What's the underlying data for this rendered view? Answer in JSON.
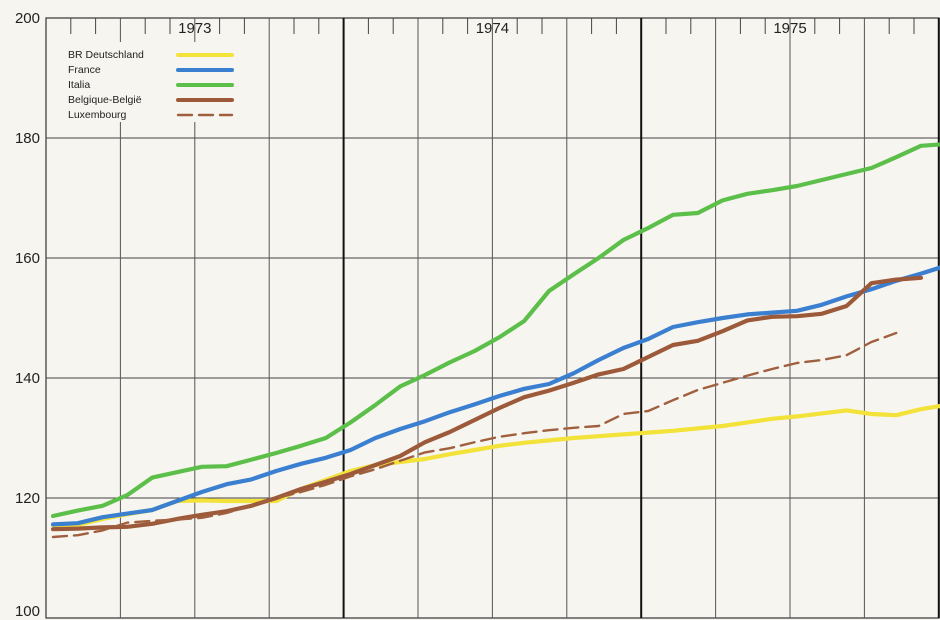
{
  "chart_data": {
    "type": "line",
    "x_unit": "month",
    "x_start": "1973-01",
    "years": [
      "1973",
      "1974",
      "1975"
    ],
    "y_ticks": [
      "200",
      "180",
      "160",
      "140",
      "120",
      "100"
    ],
    "ylim": [
      100,
      200
    ],
    "grid": true,
    "legend_position": "top-left",
    "series": [
      {
        "name": "BR Deutschland",
        "color": "#f2e23a",
        "dashed": false,
        "values": [
          115.5,
          115.5,
          116.5,
          117.3,
          118.0,
          119.5,
          119.6,
          119.5,
          119.5,
          119.5,
          121.5,
          123.0,
          124.5,
          125.5,
          126.0,
          126.5,
          127.3,
          128.0,
          128.7,
          129.2,
          129.6,
          130.0,
          130.3,
          130.6,
          130.9,
          131.2,
          131.6,
          132.0,
          132.6,
          133.2,
          133.6,
          134.1,
          134.6,
          134.0,
          133.8,
          134.8,
          135.5,
          136.5
        ]
      },
      {
        "name": "France",
        "color": "#3b7fd0",
        "dashed": false,
        "values": [
          115.6,
          115.8,
          116.8,
          117.4,
          118.0,
          119.5,
          121.0,
          122.3,
          123.1,
          124.5,
          125.7,
          126.7,
          128.0,
          130.0,
          131.5,
          132.8,
          134.3,
          135.6,
          137.0,
          138.2,
          139.0,
          140.8,
          143.0,
          145.0,
          146.5,
          148.5,
          149.3,
          150.0,
          150.6,
          150.9,
          151.2,
          152.2,
          153.6,
          154.8,
          156.2,
          157.4,
          158.7,
          159.8
        ]
      },
      {
        "name": "Italia",
        "color": "#5cbf4a",
        "dashed": false,
        "values": [
          117.0,
          117.9,
          118.7,
          120.5,
          123.4,
          124.3,
          125.2,
          125.3,
          126.4,
          127.5,
          128.7,
          130.0,
          132.6,
          135.5,
          138.6,
          140.5,
          142.6,
          144.5,
          146.8,
          149.5,
          154.5,
          157.3,
          160.0,
          163.0,
          165.0,
          167.2,
          167.5,
          169.6,
          170.7,
          171.3,
          172.0,
          173.0,
          174.0,
          175.0,
          176.8,
          178.7,
          179.0
        ]
      },
      {
        "name": "Belgique-België",
        "color": "#9c5a3a",
        "dashed": false,
        "values": [
          114.8,
          114.9,
          115.1,
          115.2,
          115.7,
          116.5,
          117.2,
          117.8,
          118.7,
          120.0,
          121.5,
          122.7,
          124.0,
          125.5,
          127.0,
          129.3,
          131.0,
          133.0,
          135.0,
          136.8,
          137.9,
          139.2,
          140.6,
          141.5,
          143.5,
          145.5,
          146.2,
          147.8,
          149.6,
          150.2,
          150.3,
          150.7,
          152.0,
          155.8,
          156.4,
          156.7
        ]
      },
      {
        "name": "Luxembourg",
        "color": "#a05f3f",
        "dashed": true,
        "values": [
          113.5,
          113.8,
          114.6,
          115.9,
          116.2,
          116.4,
          116.7,
          117.5,
          118.8,
          120.0,
          121.0,
          122.2,
          123.6,
          124.8,
          126.2,
          127.6,
          128.3,
          129.3,
          130.2,
          130.8,
          131.3,
          131.7,
          132.0,
          134.0,
          134.5,
          136.3,
          138.0,
          139.2,
          140.4,
          141.5,
          142.5,
          143.0,
          143.8,
          146.0,
          147.5
        ]
      }
    ]
  }
}
